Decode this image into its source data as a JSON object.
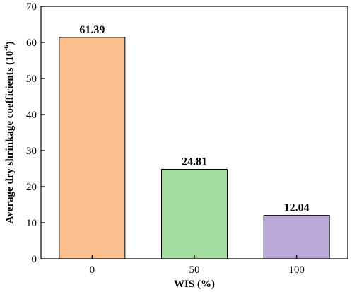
{
  "chart_data": {
    "type": "bar",
    "title": "",
    "xlabel": "WIS (%)",
    "ylabel": "Average dry shrinkage coefficients (10",
    "ylabel_sup": "-6",
    "ylabel_tail": ")",
    "categories": [
      "0",
      "50",
      "100"
    ],
    "values": [
      61.39,
      24.81,
      12.04
    ],
    "value_labels": [
      "61.39",
      "24.81",
      "12.04"
    ],
    "bar_colors": [
      "#FFC08F",
      "#A3DC9E",
      "#BCA8D6"
    ],
    "ylim": [
      0,
      70
    ],
    "yticks": [
      0,
      10,
      20,
      30,
      40,
      50,
      60,
      70
    ],
    "grid": false,
    "legend": "none"
  }
}
